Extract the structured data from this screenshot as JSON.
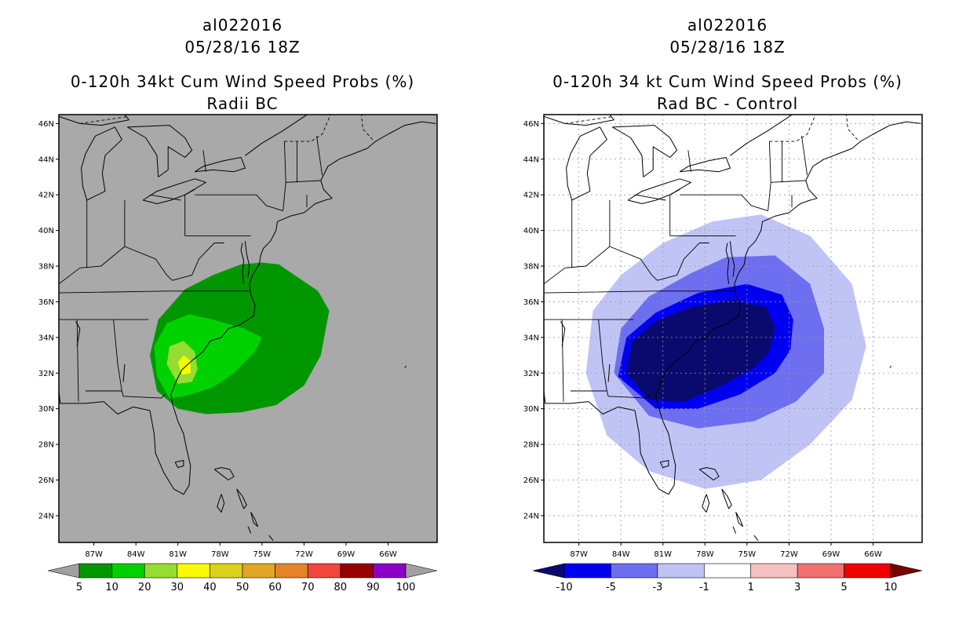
{
  "figures": [
    {
      "storm_id": "al022016",
      "datetime": "05/28/16 18Z",
      "title": "0-120h 34kt Cum Wind Speed Probs (%)",
      "subtitle": "Radii BC"
    },
    {
      "storm_id": "al022016",
      "datetime": "05/28/16 18Z",
      "title": "0-120h 34 kt Cum Wind Speed Probs (%)",
      "subtitle": "Rad BC - Control"
    }
  ],
  "chart_data": [
    {
      "type": "heatmap",
      "title": "0-120h 34kt Cum Wind Speed Probs (%)",
      "subtitle": "Radii BC",
      "x_axis": {
        "label": "",
        "range": [
          -89.5,
          -62.5
        ],
        "ticks": [
          "87W",
          "84W",
          "81W",
          "78W",
          "75W",
          "72W",
          "69W",
          "66W"
        ],
        "tick_values": [
          -87,
          -84,
          -81,
          -78,
          -75,
          -72,
          -69,
          -66
        ]
      },
      "y_axis": {
        "label": "",
        "range": [
          22.5,
          46.5
        ],
        "ticks": [
          "24N",
          "26N",
          "28N",
          "30N",
          "32N",
          "34N",
          "36N",
          "38N",
          "40N",
          "42N",
          "44N",
          "46N"
        ],
        "tick_values": [
          24,
          26,
          28,
          30,
          32,
          34,
          36,
          38,
          40,
          42,
          44,
          46
        ]
      },
      "grid": false,
      "background_color": "#a9a9a9",
      "colorbar": {
        "labels": [
          "5",
          "10",
          "20",
          "30",
          "40",
          "50",
          "60",
          "70",
          "80",
          "90",
          "100"
        ],
        "colors": [
          "#009600",
          "#00d200",
          "#96dc32",
          "#fafa00",
          "#dcd21e",
          "#e1a528",
          "#e68228",
          "#f0463c",
          "#960000",
          "#8c00c8"
        ],
        "end_color": "#a0a0a0"
      },
      "regions": [
        {
          "level": "5-10",
          "color": "#009600",
          "polygon": [
            [
              -82.5,
              31.0
            ],
            [
              -83.0,
              33.0
            ],
            [
              -82.4,
              35.0
            ],
            [
              -80.5,
              36.7
            ],
            [
              -78.5,
              37.5
            ],
            [
              -76.5,
              38.1
            ],
            [
              -75.0,
              38.2
            ],
            [
              -73.8,
              38.1
            ],
            [
              -72.5,
              37.4
            ],
            [
              -71.0,
              36.6
            ],
            [
              -70.2,
              35.5
            ],
            [
              -70.8,
              33.0
            ],
            [
              -72.0,
              31.3
            ],
            [
              -74.0,
              30.2
            ],
            [
              -76.5,
              29.8
            ],
            [
              -79.0,
              29.7
            ],
            [
              -81.0,
              30.0
            ]
          ]
        },
        {
          "level": "10-20",
          "color": "#00d200",
          "polygon": [
            [
              -81.6,
              30.6
            ],
            [
              -82.5,
              31.8
            ],
            [
              -82.7,
              33.5
            ],
            [
              -81.8,
              34.8
            ],
            [
              -80.2,
              35.3
            ],
            [
              -78.5,
              35.0
            ],
            [
              -76.3,
              34.5
            ],
            [
              -75.0,
              34.0
            ],
            [
              -75.5,
              33.2
            ],
            [
              -77.0,
              32.0
            ],
            [
              -78.5,
              31.2
            ],
            [
              -80.5,
              30.7
            ]
          ]
        },
        {
          "level": "20-30",
          "color": "#96dc32",
          "polygon": [
            [
              -81.0,
              31.4
            ],
            [
              -81.8,
              32.5
            ],
            [
              -81.6,
              33.5
            ],
            [
              -80.6,
              33.8
            ],
            [
              -79.8,
              33.2
            ],
            [
              -79.6,
              32.2
            ],
            [
              -80.0,
              31.5
            ]
          ]
        },
        {
          "level": "30-40",
          "color": "#fafa00",
          "polygon": [
            [
              -80.7,
              31.9
            ],
            [
              -81.0,
              32.6
            ],
            [
              -80.6,
              33.0
            ],
            [
              -80.1,
              32.7
            ],
            [
              -80.1,
              32.0
            ]
          ]
        }
      ]
    },
    {
      "type": "heatmap",
      "title": "0-120h 34 kt Cum Wind Speed Probs (%)",
      "subtitle": "Rad BC - Control",
      "x_axis": {
        "label": "",
        "range": [
          -89.5,
          -62.5
        ],
        "ticks": [
          "87W",
          "84W",
          "81W",
          "78W",
          "75W",
          "72W",
          "69W",
          "66W"
        ],
        "tick_values": [
          -87,
          -84,
          -81,
          -78,
          -75,
          -72,
          -69,
          -66
        ]
      },
      "y_axis": {
        "label": "",
        "range": [
          22.5,
          46.5
        ],
        "ticks": [
          "24N",
          "26N",
          "28N",
          "30N",
          "32N",
          "34N",
          "36N",
          "38N",
          "40N",
          "42N",
          "44N",
          "46N"
        ],
        "tick_values": [
          24,
          26,
          28,
          30,
          32,
          34,
          36,
          38,
          40,
          42,
          44,
          46
        ]
      },
      "grid": true,
      "background_color": "#ffffff",
      "colorbar": {
        "labels": [
          "-10",
          "-5",
          "-3",
          "-1",
          "1",
          "3",
          "5",
          "10"
        ],
        "colors": [
          "#0000f0",
          "#6e6ef0",
          "#c0c4f5",
          "#ffffff",
          "#f5c0c0",
          "#f07070",
          "#f00000"
        ],
        "end_low_color": "#0a0a6e",
        "end_high_color": "#780000"
      },
      "regions": [
        {
          "level": "-3 to -1",
          "color": "#c0c4f5",
          "polygon": [
            [
              -86.5,
              32.0
            ],
            [
              -86.0,
              35.5
            ],
            [
              -84.0,
              37.5
            ],
            [
              -81.0,
              39.3
            ],
            [
              -77.5,
              40.5
            ],
            [
              -74.0,
              40.9
            ],
            [
              -70.5,
              39.7
            ],
            [
              -67.5,
              37.0
            ],
            [
              -66.5,
              33.5
            ],
            [
              -67.5,
              30.5
            ],
            [
              -70.5,
              28.0
            ],
            [
              -74.0,
              26.0
            ],
            [
              -78.0,
              25.5
            ],
            [
              -82.0,
              26.5
            ],
            [
              -85.0,
              28.5
            ]
          ]
        },
        {
          "level": "-5 to -3",
          "color": "#6e6ef0",
          "polygon": [
            [
              -84.5,
              32.0
            ],
            [
              -84.0,
              34.5
            ],
            [
              -82.0,
              36.3
            ],
            [
              -79.0,
              37.6
            ],
            [
              -76.5,
              38.5
            ],
            [
              -73.0,
              38.6
            ],
            [
              -70.5,
              37.0
            ],
            [
              -69.5,
              34.5
            ],
            [
              -69.5,
              32.0
            ],
            [
              -71.5,
              30.4
            ],
            [
              -74.5,
              29.3
            ],
            [
              -78.5,
              28.9
            ],
            [
              -82.0,
              29.6
            ]
          ]
        },
        {
          "level": "-10 to -5",
          "color": "#0000f0",
          "polygon": [
            [
              -84.2,
              31.8
            ],
            [
              -83.6,
              34.0
            ],
            [
              -81.5,
              35.4
            ],
            [
              -78.5,
              36.5
            ],
            [
              -75.0,
              37.0
            ],
            [
              -72.5,
              36.4
            ],
            [
              -71.7,
              35.0
            ],
            [
              -71.9,
              33.3
            ],
            [
              -73.0,
              32.0
            ],
            [
              -75.5,
              30.8
            ],
            [
              -78.5,
              30.0
            ],
            [
              -81.5,
              30.0
            ]
          ]
        },
        {
          "level": "< -10",
          "color": "#0a0a6e",
          "polygon": [
            [
              -83.6,
              32.0
            ],
            [
              -83.2,
              33.8
            ],
            [
              -81.5,
              34.9
            ],
            [
              -79.0,
              35.7
            ],
            [
              -76.0,
              36.1
            ],
            [
              -73.6,
              35.7
            ],
            [
              -73.0,
              34.5
            ],
            [
              -73.4,
              33.2
            ],
            [
              -74.5,
              32.3
            ],
            [
              -77.0,
              31.2
            ],
            [
              -79.5,
              30.4
            ],
            [
              -82.0,
              30.5
            ]
          ]
        }
      ]
    }
  ]
}
